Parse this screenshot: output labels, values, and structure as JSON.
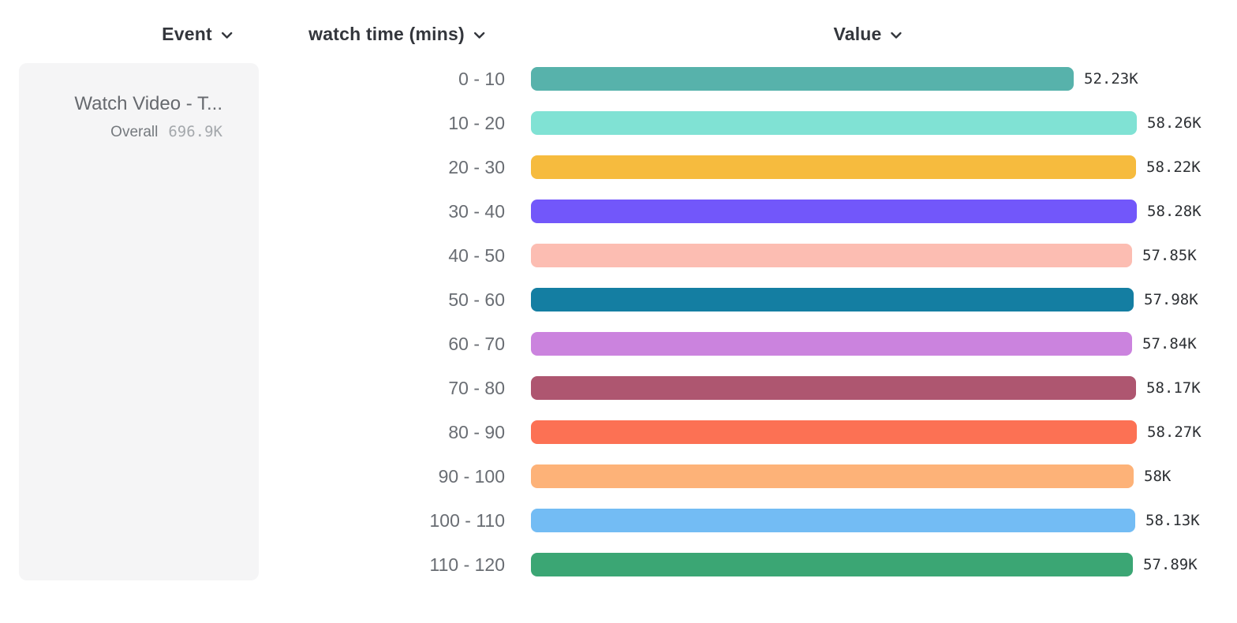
{
  "header": {
    "columns": [
      {
        "label": "Event"
      },
      {
        "label": "watch time (mins)"
      },
      {
        "label": "Value"
      }
    ]
  },
  "event_card": {
    "title": "Watch Video - T...",
    "overall_label": "Overall",
    "overall_value": "696.9K"
  },
  "chart_data": {
    "type": "bar",
    "orientation": "horizontal",
    "categories": [
      "0 - 10",
      "10 - 20",
      "20 - 30",
      "30 - 40",
      "40 - 50",
      "50 - 60",
      "60 - 70",
      "70 - 80",
      "80 - 90",
      "90 - 100",
      "100 - 110",
      "110 - 120"
    ],
    "values": [
      52.23,
      58.26,
      58.22,
      58.28,
      57.85,
      57.98,
      57.84,
      58.17,
      58.27,
      58.0,
      58.13,
      57.89
    ],
    "value_labels": [
      "52.23K",
      "58.26K",
      "58.22K",
      "58.28K",
      "57.85K",
      "57.98K",
      "57.84K",
      "58.17K",
      "58.27K",
      "58K",
      "58.13K",
      "57.89K"
    ],
    "bar_colors": [
      "#57b2ab",
      "#80e2d4",
      "#f6bb3e",
      "#7257fa",
      "#fcbdb2",
      "#147ea2",
      "#cb83de",
      "#ae5670",
      "#fc7154",
      "#fdb278",
      "#73bcf4",
      "#3ba674"
    ],
    "xlabel": "Value",
    "ylabel": "watch time (mins)",
    "xlim": [
      0,
      58.28
    ],
    "grid": false,
    "legend_position": "left"
  },
  "colors": {
    "header_text": "#33363c",
    "category_text": "#696d73",
    "value_text": "#2c2f33",
    "card_background": "#f5f5f6"
  }
}
